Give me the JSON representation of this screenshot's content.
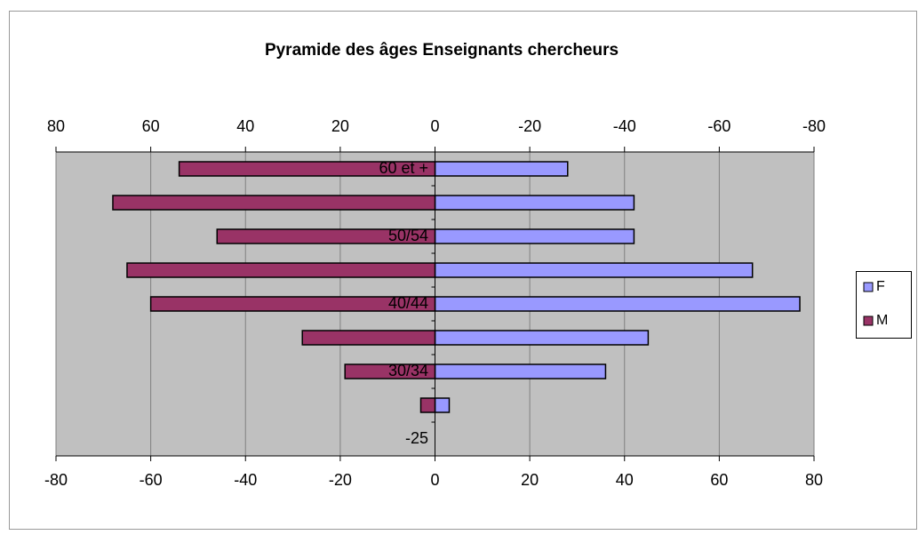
{
  "chart_data": {
    "type": "bar",
    "orientation": "horizontal",
    "title": "Pyramide des âges Enseignants chercheurs",
    "categories": [
      "60 et +",
      null,
      "50/54",
      null,
      "40/44",
      null,
      "30/34",
      null,
      "-25"
    ],
    "series": [
      {
        "name": "F",
        "color": "#9999ff",
        "values": [
          28,
          42,
          42,
          67,
          77,
          45,
          36,
          3,
          0
        ]
      },
      {
        "name": "M",
        "color": "#993366",
        "values": [
          -54,
          -68,
          -46,
          -65,
          -60,
          -28,
          -19,
          -3,
          0
        ]
      }
    ],
    "xlim": [
      -80,
      80
    ],
    "xticks": [
      -80,
      -60,
      -40,
      -20,
      0,
      20,
      40,
      60,
      80
    ],
    "x2lim": [
      80,
      -80
    ],
    "x2ticks": [
      80,
      60,
      40,
      20,
      0,
      -20,
      -40,
      -60,
      -80
    ],
    "grid": true,
    "legend": "right",
    "background": "#c0c0c0"
  }
}
